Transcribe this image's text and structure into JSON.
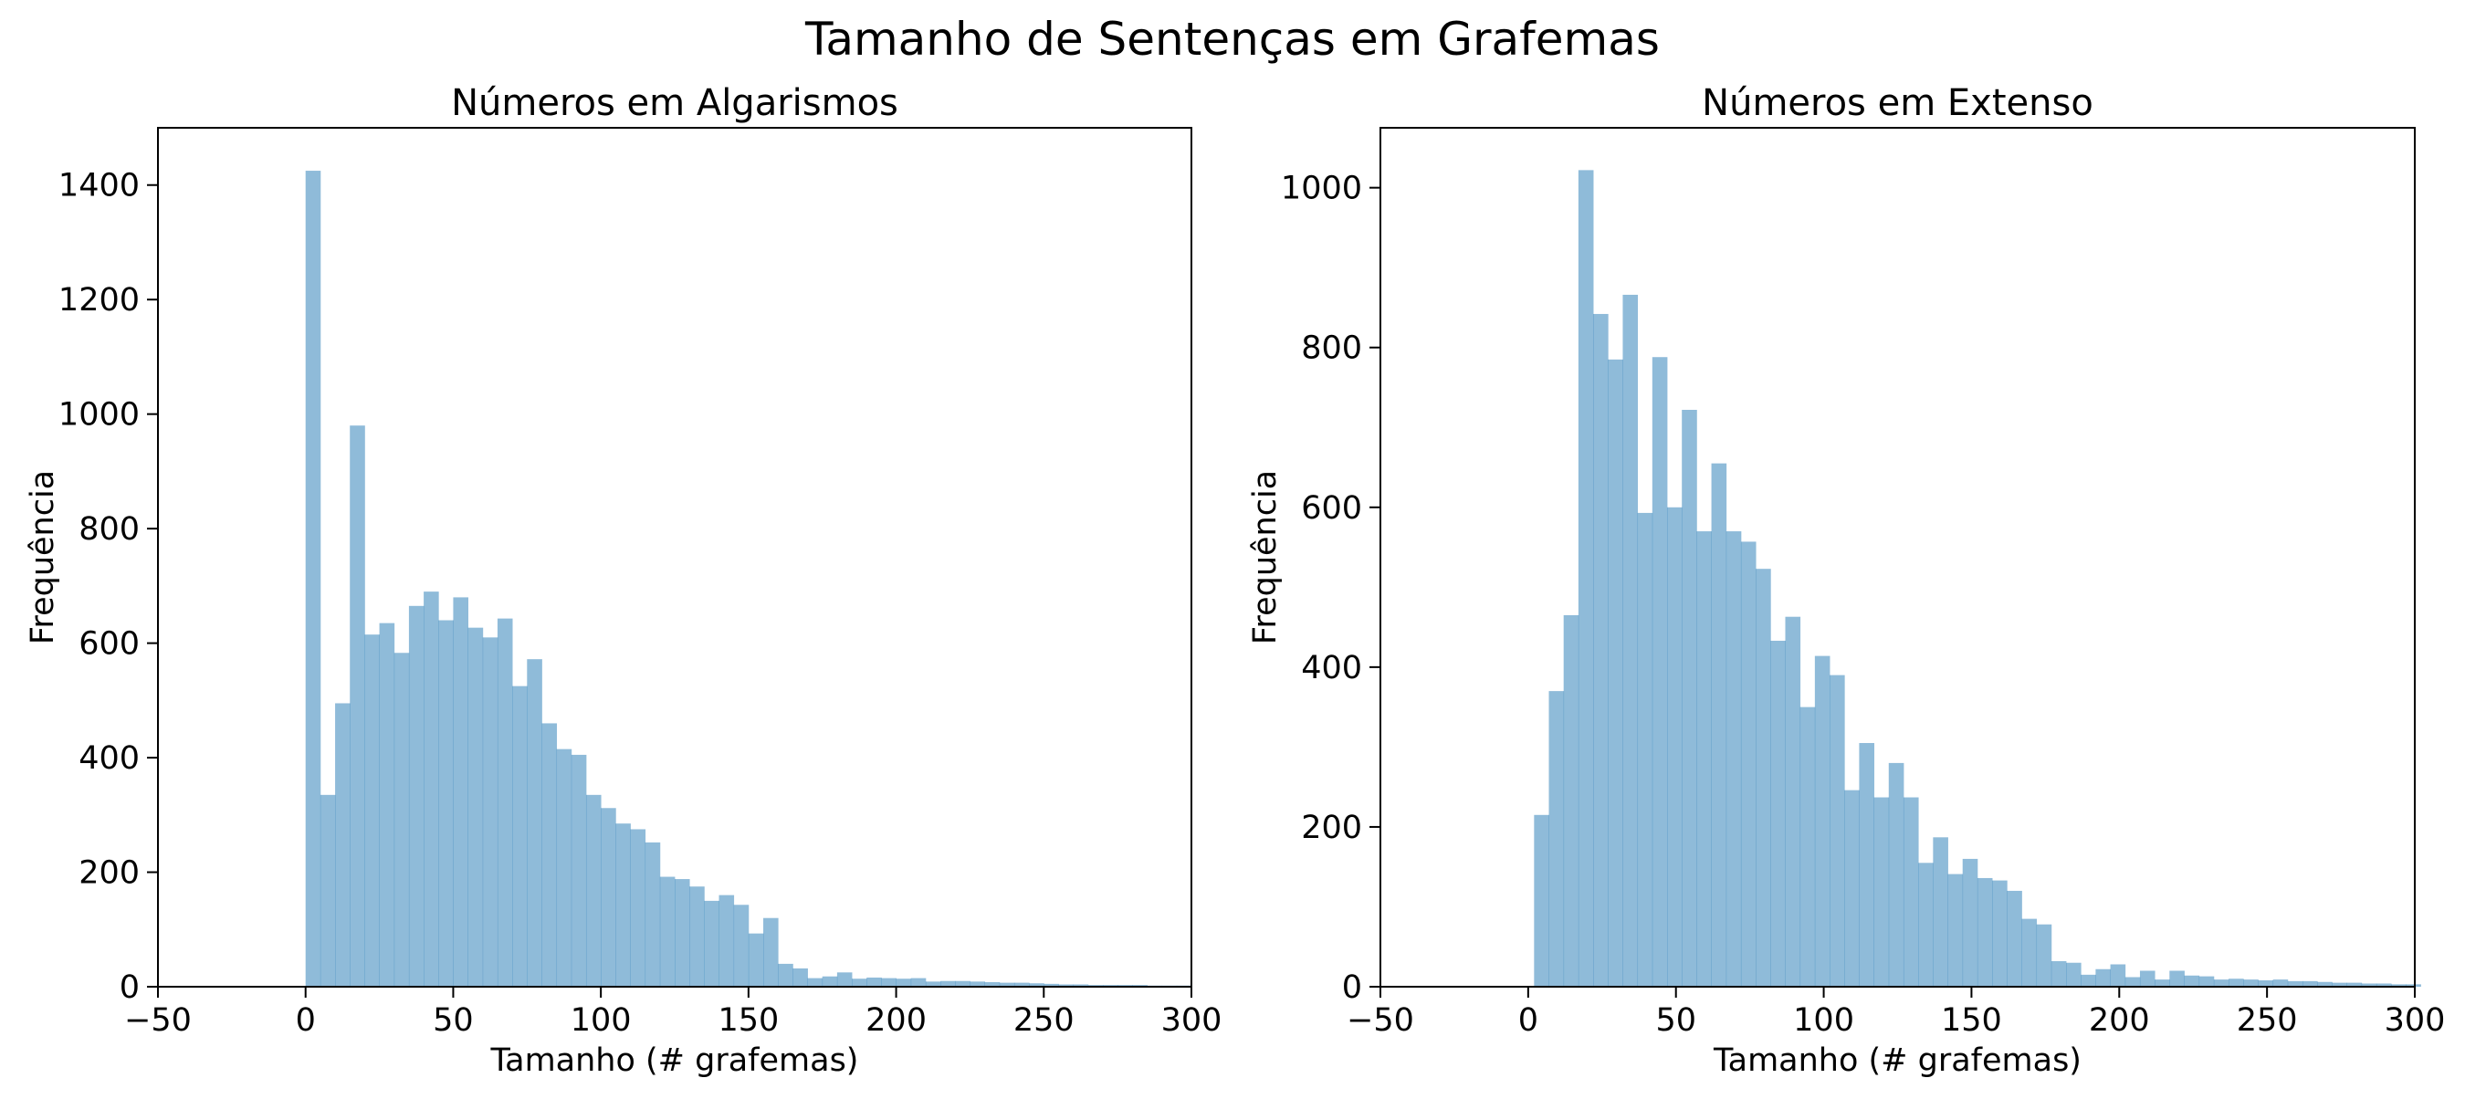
{
  "figure": {
    "title": "Tamanho de Sentenças em Grafemas"
  },
  "chart_data": [
    {
      "type": "bar",
      "title": "Números em Algarismos",
      "xlabel": "Tamanho (# grafemas)",
      "ylabel": "Frequência",
      "xlim": [
        -50,
        300
      ],
      "ylim": [
        0,
        1500
      ],
      "xticks": [
        -50,
        0,
        50,
        100,
        150,
        200,
        250,
        300
      ],
      "yticks": [
        0,
        200,
        400,
        600,
        800,
        1000,
        1200,
        1400
      ],
      "tick_labels_x": [
        "−50",
        "0",
        "50",
        "100",
        "150",
        "200",
        "250",
        "300"
      ],
      "tick_labels_y": [
        "0",
        "200",
        "400",
        "600",
        "800",
        "1000",
        "1200",
        "1400"
      ],
      "grid": false,
      "color": "#1f77b4",
      "bin_edges": [
        0,
        5,
        10,
        15,
        20,
        25,
        30,
        35,
        40,
        45,
        50,
        55,
        60,
        65,
        70,
        75,
        80,
        85,
        90,
        95,
        100,
        105,
        110,
        115,
        120,
        125,
        130,
        135,
        140,
        145,
        150,
        155,
        160,
        165,
        170,
        175,
        180,
        185,
        190,
        195,
        200,
        205,
        210,
        215,
        220,
        225,
        230,
        235,
        240,
        245,
        250,
        255,
        260,
        265,
        270,
        275,
        280,
        285,
        290,
        295,
        300
      ],
      "values": [
        1425,
        335,
        495,
        980,
        615,
        635,
        583,
        665,
        690,
        640,
        680,
        627,
        610,
        643,
        525,
        572,
        460,
        415,
        405,
        335,
        312,
        285,
        275,
        252,
        192,
        188,
        175,
        150,
        160,
        143,
        93,
        120,
        40,
        32,
        15,
        18,
        25,
        14,
        16,
        15,
        14,
        15,
        9,
        10,
        10,
        9,
        8,
        7,
        7,
        6,
        5,
        4,
        4,
        3,
        3,
        3,
        3,
        2,
        2,
        2
      ]
    },
    {
      "type": "bar",
      "title": "Números em Extenso",
      "xlabel": "Tamanho (# grafemas)",
      "ylabel": "Frequência",
      "xlim": [
        -50,
        300
      ],
      "ylim": [
        0,
        1075
      ],
      "xticks": [
        -50,
        0,
        50,
        100,
        150,
        200,
        250,
        300
      ],
      "yticks": [
        0,
        200,
        400,
        600,
        800,
        1000
      ],
      "tick_labels_x": [
        "−50",
        "0",
        "50",
        "100",
        "150",
        "200",
        "250",
        "300"
      ],
      "tick_labels_y": [
        "0",
        "200",
        "400",
        "600",
        "800",
        "1000"
      ],
      "grid": false,
      "color": "#1f77b4",
      "bin_edges": [
        2,
        7,
        12,
        17,
        22,
        27,
        32,
        37,
        42,
        47,
        52,
        57,
        62,
        67,
        72,
        77,
        82,
        87,
        92,
        97,
        102,
        107,
        112,
        117,
        122,
        127,
        132,
        137,
        142,
        147,
        152,
        157,
        162,
        167,
        172,
        177,
        182,
        187,
        192,
        197,
        202,
        207,
        212,
        217,
        222,
        227,
        232,
        237,
        242,
        247,
        252,
        257,
        262,
        267,
        272,
        277,
        282,
        287,
        292,
        297,
        302
      ],
      "values": [
        215,
        370,
        465,
        1022,
        842,
        785,
        866,
        593,
        788,
        600,
        722,
        570,
        655,
        570,
        557,
        523,
        433,
        463,
        350,
        414,
        390,
        246,
        305,
        237,
        280,
        237,
        155,
        187,
        141,
        160,
        136,
        133,
        120,
        85,
        78,
        32,
        30,
        15,
        22,
        28,
        12,
        20,
        9,
        20,
        14,
        13,
        9,
        10,
        9,
        8,
        9,
        7,
        7,
        6,
        5,
        5,
        4,
        4,
        3,
        3
      ]
    }
  ]
}
